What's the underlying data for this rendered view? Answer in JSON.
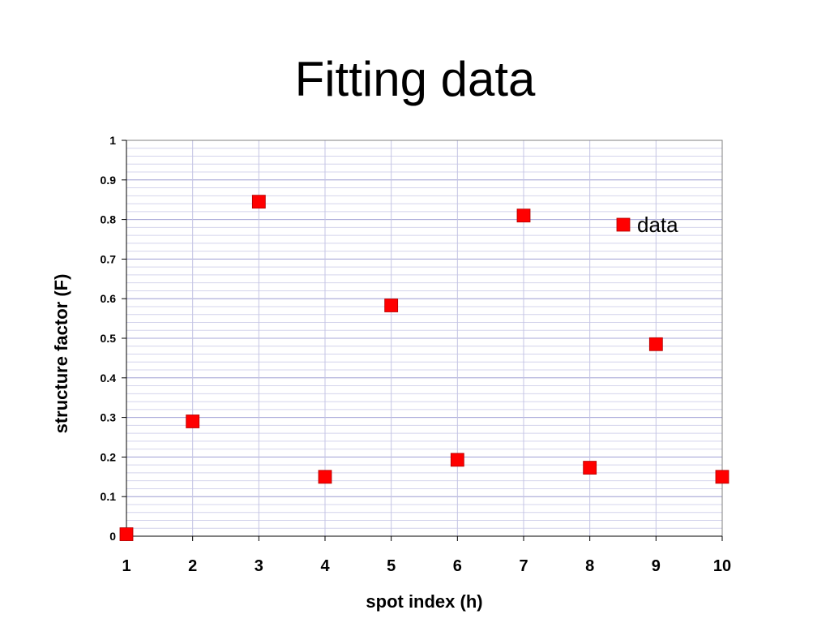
{
  "chart_data": {
    "type": "scatter",
    "title": "Fitting data",
    "xlabel": "spot index (h)",
    "ylabel": "structure factor (F)",
    "xlim": [
      1,
      10
    ],
    "ylim": [
      0,
      1
    ],
    "x_ticks": [
      "1",
      "2",
      "3",
      "4",
      "5",
      "6",
      "7",
      "8",
      "9",
      "10"
    ],
    "y_ticks": [
      "0",
      "0.1",
      "0.2",
      "0.3",
      "0.4",
      "0.5",
      "0.6",
      "0.7",
      "0.8",
      "0.9",
      "1"
    ],
    "grid": true,
    "legend_position": "top-right",
    "series": [
      {
        "name": "data",
        "color": "#ff0000",
        "marker": "square",
        "x": [
          1,
          2,
          3,
          4,
          5,
          6,
          7,
          8,
          9,
          10
        ],
        "y": [
          0.005,
          0.29,
          0.845,
          0.15,
          0.583,
          0.193,
          0.81,
          0.173,
          0.485,
          0.15
        ]
      }
    ]
  }
}
